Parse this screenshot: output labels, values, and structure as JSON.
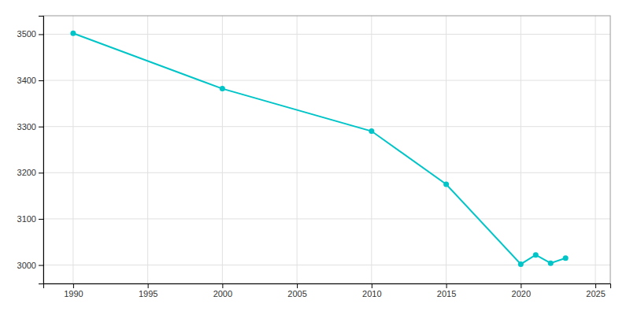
{
  "chart_data": {
    "type": "line",
    "x": [
      1990,
      2000,
      2010,
      2015,
      2020,
      2021,
      2022,
      2023
    ],
    "values": [
      3502,
      3382,
      3290,
      3175,
      3002,
      3022,
      3004,
      3015
    ],
    "color": "#00C5C8",
    "marker": "circle",
    "xlim": [
      1988,
      2026
    ],
    "ylim": [
      2960,
      3540
    ],
    "xticks": [
      1990,
      1995,
      2000,
      2005,
      2010,
      2015,
      2020,
      2025
    ],
    "yticks": [
      3000,
      3100,
      3200,
      3300,
      3400,
      3500
    ],
    "grid": true
  }
}
